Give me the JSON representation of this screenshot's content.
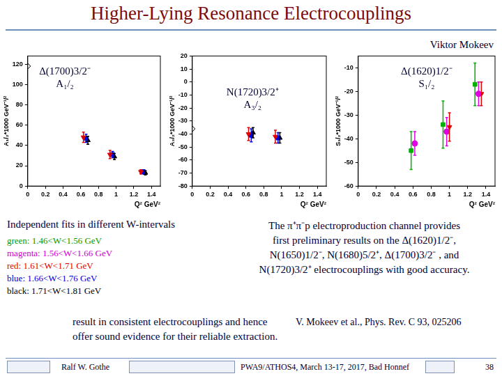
{
  "header": {
    "title": "Higher-Lying Resonance Electrocouplings",
    "author": "Viktor Mokeev"
  },
  "chart_data": [
    {
      "type": "scatter",
      "title": [
        "Δ(1700)3/2⁻",
        "A₁/₂"
      ],
      "y_label": "A₁/₂*1000 GeV⁻¹/²",
      "x_label": "Q² GeV²",
      "xlim": [
        0,
        1.5
      ],
      "xticks": [
        0,
        0.2,
        0.4,
        0.6,
        0.8,
        1,
        1.2,
        1.4
      ],
      "ylim": [
        0,
        128
      ],
      "yticks": [
        0,
        20,
        40,
        60,
        80,
        100,
        120
      ],
      "grid": false,
      "series": [
        {
          "color": "#000000",
          "marker": "diamond_open",
          "x": [
            0
          ],
          "values": [
            118
          ]
        },
        {
          "color": "#e00000",
          "marker": "triangle_down",
          "x": [
            0.63,
            0.93,
            1.28
          ],
          "values": [
            48,
            31,
            14
          ],
          "errors": [
            5,
            4,
            2
          ]
        },
        {
          "color": "#0000e0",
          "marker": "square",
          "x": [
            0.66,
            0.96,
            1.31
          ],
          "values": [
            47,
            31,
            14
          ],
          "errors": [
            4,
            3,
            2
          ]
        },
        {
          "color": "#000000",
          "marker": "triangle",
          "x": [
            0.68,
            0.98,
            1.33
          ],
          "values": [
            45,
            29,
            13
          ],
          "errors": [
            4,
            3,
            2
          ]
        }
      ]
    },
    {
      "type": "scatter",
      "title": [
        "N(1720)3/2⁺",
        "A₃/₂"
      ],
      "y_label": "A₃/₂*1000 GeV⁻¹/²",
      "x_label": "Q² GeV²",
      "xlim": [
        0,
        1.5
      ],
      "xticks": [
        0,
        0.2,
        0.4,
        0.6,
        0.8,
        1,
        1.2,
        1.4
      ],
      "ylim": [
        -80,
        20
      ],
      "yticks": [
        -80,
        -70,
        -60,
        -50,
        -40,
        -30,
        -20,
        -10,
        0,
        10,
        20
      ],
      "grid": false,
      "series": [
        {
          "color": "#000000",
          "marker": "diamond_open",
          "x": [
            0
          ],
          "values": [
            -36
          ]
        },
        {
          "color": "#e00000",
          "marker": "triangle_down",
          "x": [
            0.63,
            0.93
          ],
          "values": [
            -40,
            -42
          ],
          "errors": [
            5,
            5
          ]
        },
        {
          "color": "#0000e0",
          "marker": "square",
          "x": [
            0.66,
            0.96
          ],
          "values": [
            -41,
            -43
          ],
          "errors": [
            5,
            4
          ]
        },
        {
          "color": "#000000",
          "marker": "triangle",
          "x": [
            0.68,
            0.98
          ],
          "values": [
            -39,
            -43
          ],
          "errors": [
            4,
            4
          ]
        }
      ]
    },
    {
      "type": "scatter",
      "title": [
        "Δ(1620)1/2⁻",
        "S₁/₂"
      ],
      "y_label": "S₁/₂*1000 GeV⁻¹/²",
      "x_label": "Q² GeV²",
      "xlim": [
        0,
        1.5
      ],
      "xticks": [
        0,
        0.2,
        0.4,
        0.6,
        0.8,
        1,
        1.2,
        1.4
      ],
      "ylim": [
        -60,
        -5
      ],
      "yticks": [
        -60,
        -50,
        -40,
        -30,
        -20,
        -10
      ],
      "grid": false,
      "series": [
        {
          "color": "#00b000",
          "marker": "square",
          "x": [
            0.58,
            0.93,
            1.28
          ],
          "values": [
            -45,
            -34,
            -17
          ],
          "errors": [
            8,
            10,
            9
          ]
        },
        {
          "color": "#e000e0",
          "marker": "circle",
          "x": [
            0.62,
            0.97,
            1.32
          ],
          "values": [
            -42,
            -37,
            -21
          ],
          "errors": [
            5,
            6,
            5
          ]
        },
        {
          "color": "#e00000",
          "marker": "triangle_down",
          "x": [
            1.0,
            1.35
          ],
          "values": [
            -35,
            -21
          ],
          "errors": [
            6,
            5
          ]
        }
      ]
    }
  ],
  "notes": {
    "left_heading": "Independent fits in different W-intervals",
    "w_intervals": [
      {
        "text": "green: 1.46<W<1.56 GeV",
        "color": "#00a000"
      },
      {
        "text": "magenta: 1.56<W<1.66 GeV",
        "color": "#d000d0"
      },
      {
        "text": "red: 1.61<W<1.71 GeV",
        "color": "#e00000"
      },
      {
        "text": "blue: 1.66<W<1.76 GeV",
        "color": "#0000d0"
      },
      {
        "text": "black: 1.71<W<1.81 GeV",
        "color": "#000000"
      }
    ],
    "paragraph": [
      "The π⁺π⁻p electroproduction channel provides",
      "first preliminary results on the Δ(1620)1/2⁻,",
      "N(1650)1/2⁻, N(1680)5/2⁺, Δ(1700)3/2⁻ , and",
      "N(1720)3/2⁺ electrocouplings with good accuracy."
    ],
    "conclusion": [
      "result in consistent electrocouplings and hence",
      "offer sound evidence for their reliable extraction."
    ],
    "reference": "V. Mokeev et al., Phys. Rev. C 93, 025206"
  },
  "footer": {
    "presenter": "Ralf W. Gothe",
    "event": "PWA9/ATHOS4, March 13-17, 2017, Bad Honnef",
    "page": "38"
  }
}
